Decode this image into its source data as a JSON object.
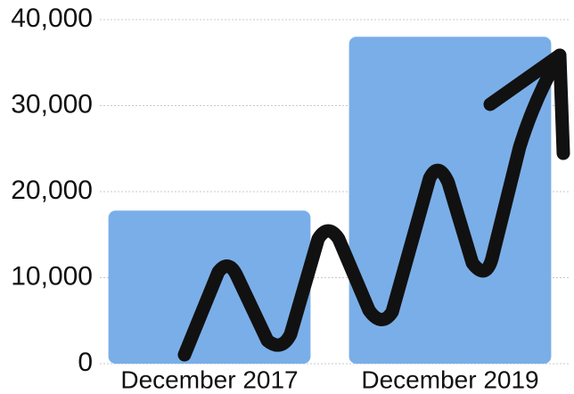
{
  "chart_data": {
    "type": "bar",
    "categories": [
      "December 2017",
      "December 2019"
    ],
    "values": [
      17800,
      38000
    ],
    "color": "#7aaee8",
    "ylim": [
      0,
      40000
    ],
    "yticks": [
      0,
      {
        "value": 10000,
        "label": "10,000"
      },
      {
        "value": 20000,
        "label": "20,000"
      },
      {
        "value": 30000,
        "label": "30,000"
      },
      {
        "value": 40000,
        "label": "40,000"
      }
    ],
    "grid": true
  }
}
